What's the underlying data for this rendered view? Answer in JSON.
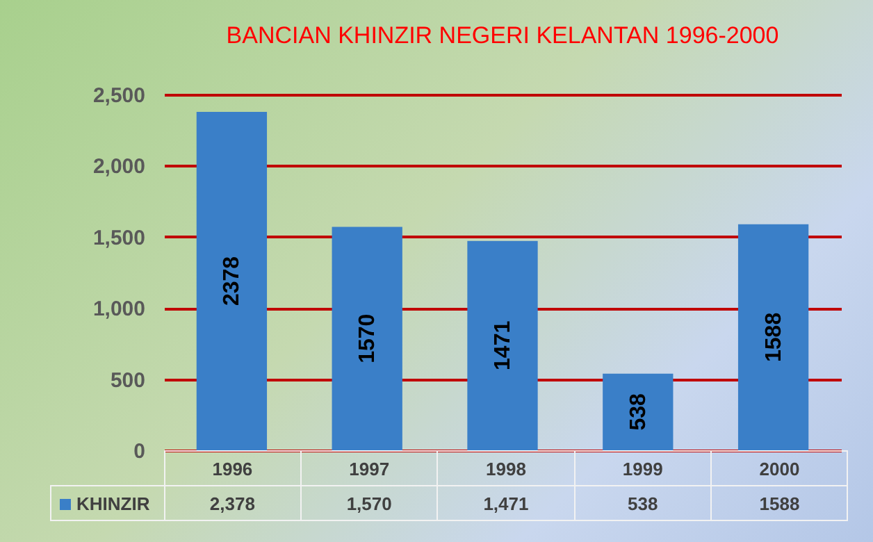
{
  "chart_data": {
    "type": "bar",
    "title": "BANCIAN KHINZIR NEGERI KELANTAN  1996-2000",
    "categories": [
      "1996",
      "1997",
      "1998",
      "1999",
      "2000"
    ],
    "series": [
      {
        "name": "KHINZIR",
        "color": "#3a7fc8",
        "values": [
          2378,
          1570,
          1471,
          538,
          1588
        ]
      }
    ],
    "annotations": [
      "2,378",
      "1,570",
      "1,471",
      "538",
      "1588"
    ],
    "ylim": [
      0,
      2500
    ],
    "yticks": [
      {
        "value": 0,
        "label": "0"
      },
      {
        "value": 500,
        "label": "500"
      },
      {
        "value": 1000,
        "label": "1,000"
      },
      {
        "value": 1500,
        "label": "1,500"
      },
      {
        "value": 2000,
        "label": "2,000"
      },
      {
        "value": 2500,
        "label": "2,500"
      }
    ],
    "grid": "y",
    "data_labels": true,
    "legend": "bottom"
  }
}
